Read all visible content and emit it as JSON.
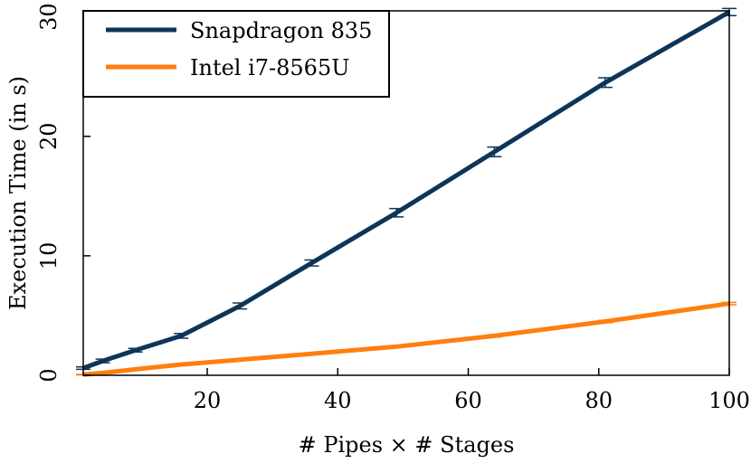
{
  "chart_data": {
    "type": "line",
    "title": "",
    "xlabel": "# Pipes × # Stages",
    "ylabel": "Execution Time (in s)",
    "xlim": [
      1,
      100
    ],
    "ylim": [
      0,
      30.5
    ],
    "xticks": [
      20,
      40,
      60,
      80,
      100
    ],
    "yticks": [
      0,
      10,
      20,
      30
    ],
    "legend_position": "top-left",
    "series": [
      {
        "name": "Snapdragon 835",
        "color": "#0d3559",
        "x": [
          1,
          4,
          9,
          16,
          25,
          36,
          49,
          64,
          81,
          100
        ],
        "y": [
          0.6,
          1.2,
          2.1,
          3.3,
          5.8,
          9.4,
          13.6,
          18.7,
          24.5,
          30.4
        ],
        "err": [
          0.1,
          0.15,
          0.15,
          0.2,
          0.25,
          0.25,
          0.35,
          0.4,
          0.4,
          0.3
        ]
      },
      {
        "name": "Intel i7-8565U",
        "color": "#ff7f0e",
        "x": [
          1,
          4,
          9,
          16,
          25,
          36,
          49,
          64,
          81,
          100
        ],
        "y": [
          0.05,
          0.2,
          0.5,
          0.9,
          1.3,
          1.8,
          2.4,
          3.3,
          4.5,
          6.0
        ],
        "err": [
          0.02,
          0.03,
          0.03,
          0.05,
          0.05,
          0.05,
          0.05,
          0.1,
          0.1,
          0.1
        ]
      }
    ]
  }
}
